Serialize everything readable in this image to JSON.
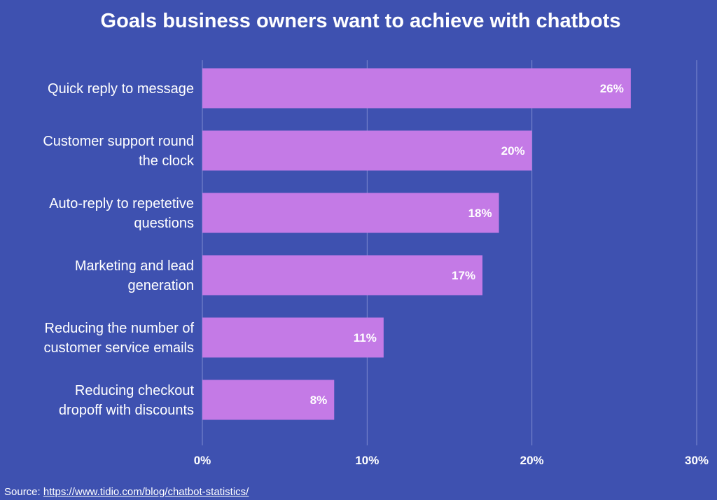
{
  "chart_data": {
    "type": "bar",
    "orientation": "horizontal",
    "title": "Goals business owners want to achieve with chatbots",
    "categories": [
      [
        "Quick reply to message"
      ],
      [
        "Customer support round",
        "the clock"
      ],
      [
        "Auto-reply to repetetive",
        "questions"
      ],
      [
        "Marketing and lead",
        "generation"
      ],
      [
        "Reducing the number of",
        "customer service emails"
      ],
      [
        "Reducing checkout",
        "dropoff with discounts"
      ]
    ],
    "values": [
      26,
      20,
      18,
      17,
      11,
      8
    ],
    "value_labels": [
      "26%",
      "20%",
      "18%",
      "17%",
      "11%",
      "8%"
    ],
    "xlim": [
      0,
      30
    ],
    "x_ticks": [
      0,
      10,
      20,
      30
    ],
    "x_tick_labels": [
      "0%",
      "10%",
      "20%",
      "30%"
    ],
    "grid": "vertical",
    "legend": "none",
    "colors": {
      "background": "#3e51b0",
      "bar": "#c47ae6",
      "grid": "#7d8ad0",
      "text": "#ffffff"
    }
  },
  "source": {
    "label": "Source:",
    "link": "https://www.tidio.com/blog/chatbot-statistics/"
  }
}
